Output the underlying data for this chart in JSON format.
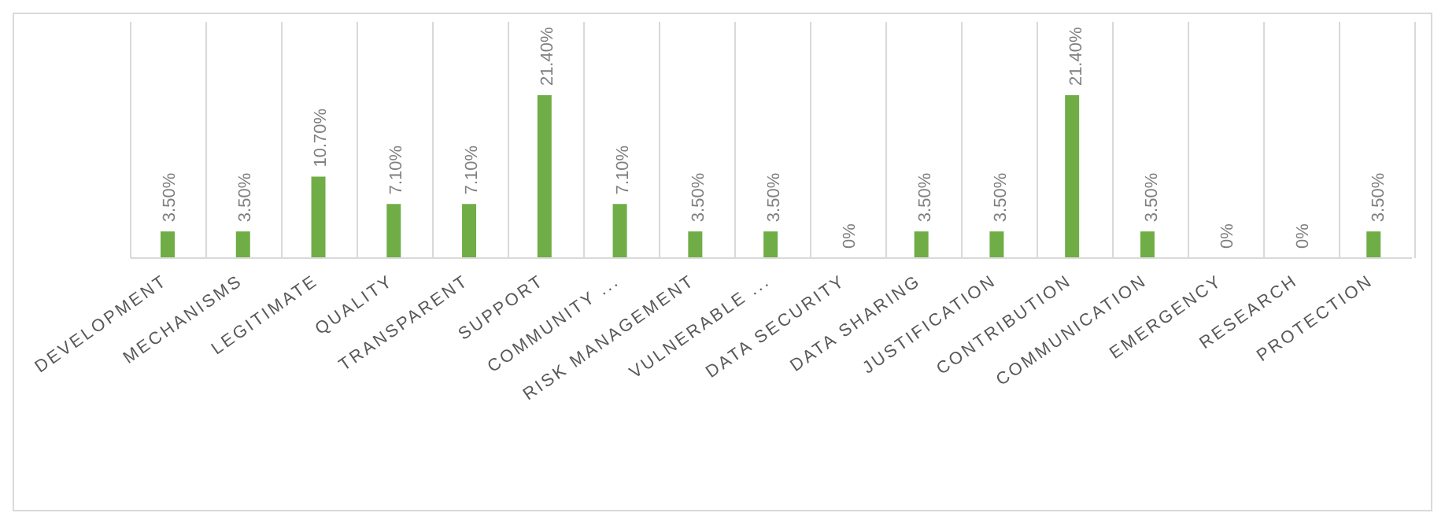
{
  "chart_data": {
    "type": "bar",
    "categories": [
      "DEVELOPMENT",
      "MECHANISMS",
      "LEGITIMATE",
      "QUALITY",
      "TRANSPARENT",
      "SUPPORT",
      "COMMUNITY ...",
      "RISK MANAGEMENT",
      "VULNERABLE ...",
      "DATA SECURITY",
      "DATA SHARING",
      "JUSTIFICATION",
      "CONTRIBUTION",
      "COMMUNICATION",
      "EMERGENCY",
      "RESEARCH",
      "PROTECTION"
    ],
    "values": [
      3.5,
      3.5,
      10.7,
      7.1,
      7.1,
      21.4,
      7.1,
      3.5,
      3.5,
      0,
      3.5,
      3.5,
      21.4,
      3.5,
      0,
      0,
      3.5
    ],
    "value_labels": [
      "3.50%",
      "3.50%",
      "10.70%",
      "7.10%",
      "7.10%",
      "21.40%",
      "7.10%",
      "3.50%",
      "3.50%",
      "0%",
      "3.50%",
      "3.50%",
      "21.40%",
      "3.50%",
      "0%",
      "0%",
      "3.50%"
    ],
    "color": "#70ad47",
    "grid": "x"
  }
}
